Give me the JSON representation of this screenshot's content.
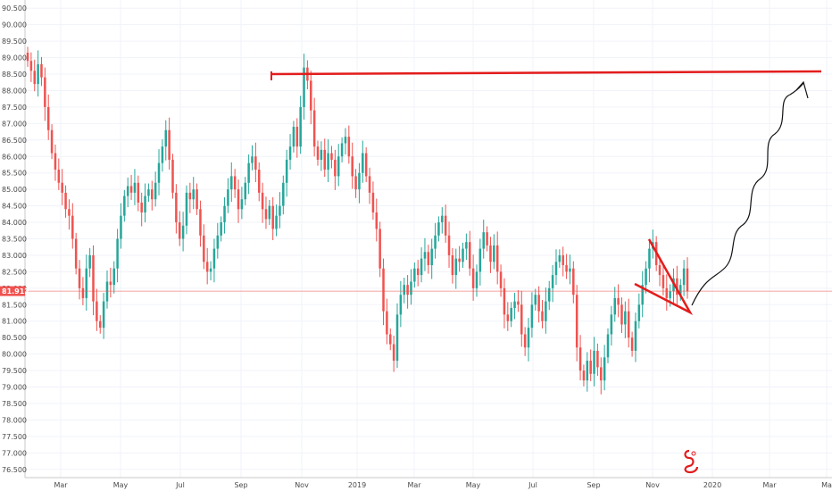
{
  "chart_data": {
    "type": "candlestick",
    "title": "",
    "xlabel": "",
    "ylabel": "",
    "ylim": [
      76.25,
      90.75
    ],
    "y_ticks": [
      "90.500",
      "90.000",
      "89.500",
      "89.000",
      "88.500",
      "88.000",
      "87.500",
      "87.000",
      "86.500",
      "86.000",
      "85.500",
      "85.000",
      "84.500",
      "84.000",
      "83.500",
      "83.000",
      "82.500",
      "82.000",
      "81.500",
      "81.000",
      "80.500",
      "80.000",
      "79.500",
      "79.000",
      "78.500",
      "78.000",
      "77.500",
      "77.000",
      "76.500"
    ],
    "x_ticks": [
      "Mar",
      "May",
      "Jul",
      "Sep",
      "Nov",
      "2019",
      "Mar",
      "May",
      "Jul",
      "Sep",
      "Nov",
      "2020",
      "Mar",
      "Ma"
    ],
    "current_price": "81.912",
    "grid": true,
    "colors": {
      "up": "#26a69a",
      "down": "#ef5350",
      "annotation": "#e31c1c",
      "drawing": "#111111",
      "price_line": "#ef5350"
    },
    "series": [
      {
        "key": "close",
        "values": [
          88.9,
          88.6,
          88.2,
          88.8,
          88.4,
          87.5,
          86.8,
          86.1,
          85.6,
          85.2,
          84.9,
          84.4,
          84.2,
          83.5,
          82.6,
          82.0,
          81.7,
          82.6,
          83.0,
          81.6,
          81.0,
          80.8,
          81.6,
          82.2,
          82.1,
          82.6,
          83.5,
          84.2,
          84.8,
          85.1,
          84.9,
          85.2,
          84.6,
          84.3,
          84.8,
          85.0,
          84.7,
          85.2,
          85.8,
          86.3,
          86.8,
          85.9,
          84.9,
          84.0,
          83.5,
          83.9,
          84.9,
          84.7,
          85.0,
          84.4,
          83.6,
          82.8,
          82.5,
          82.6,
          83.2,
          83.6,
          84.0,
          84.5,
          85.0,
          85.4,
          85.0,
          84.4,
          84.7,
          85.2,
          85.8,
          86.0,
          85.6,
          84.9,
          84.4,
          84.1,
          84.5,
          83.8,
          84.2,
          84.5,
          85.2,
          85.9,
          86.3,
          86.9,
          86.3,
          87.5,
          88.7,
          88.3,
          87.4,
          86.3,
          85.9,
          86.2,
          85.6,
          86.1,
          85.9,
          85.4,
          86.0,
          86.4,
          86.6,
          86.0,
          85.4,
          85.0,
          85.5,
          86.1,
          85.4,
          84.9,
          84.3,
          83.8,
          82.6,
          81.3,
          80.6,
          80.3,
          79.8,
          81.2,
          81.8,
          82.1,
          81.8,
          82.2,
          82.6,
          82.4,
          82.9,
          83.1,
          82.7,
          83.2,
          83.6,
          84.0,
          84.2,
          83.6,
          83.0,
          82.4,
          82.9,
          82.8,
          83.2,
          83.4,
          82.6,
          82.0,
          82.5,
          83.2,
          83.7,
          83.3,
          82.8,
          83.3,
          82.5,
          82.0,
          81.2,
          81.0,
          81.4,
          81.6,
          81.5,
          80.6,
          80.2,
          80.8,
          81.5,
          81.8,
          81.3,
          81.0,
          81.6,
          82.0,
          82.4,
          82.8,
          83.0,
          82.7,
          82.5,
          82.6,
          81.8,
          80.2,
          79.5,
          79.2,
          79.8,
          79.4,
          80.1,
          79.6,
          79.2,
          79.9,
          80.6,
          81.2,
          81.7,
          81.5,
          80.9,
          81.3,
          80.5,
          80.1,
          81.0,
          81.5,
          82.1,
          82.6,
          83.2,
          83.4,
          82.7,
          82.4,
          82.0,
          81.7,
          81.9,
          82.3,
          81.8,
          82.1,
          82.6,
          81.9
        ]
      }
    ]
  }
}
